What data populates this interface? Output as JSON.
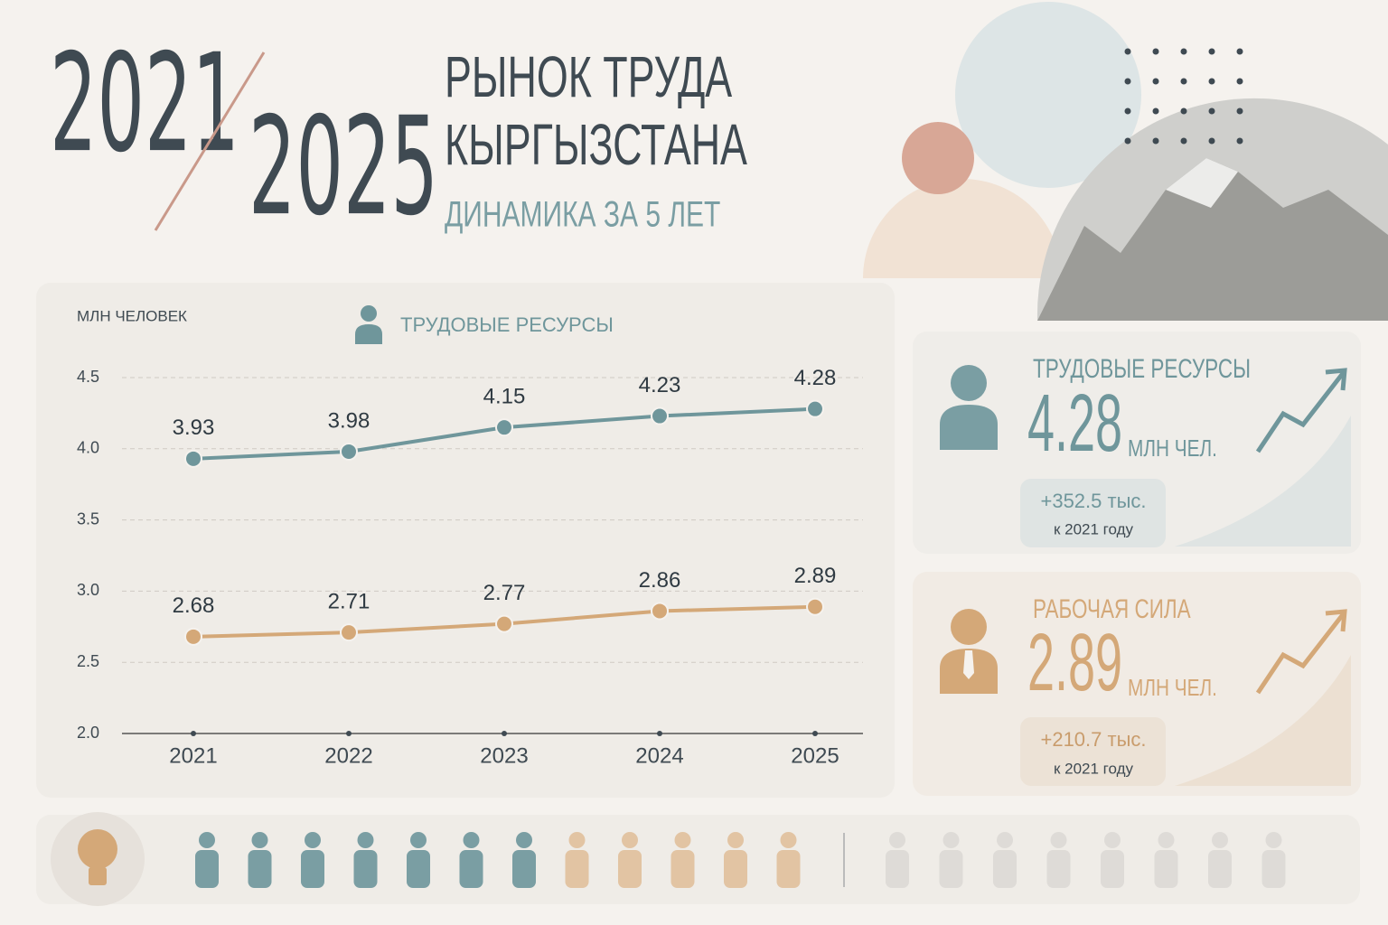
{
  "header": {
    "year_start": "2021",
    "year_end": "2025",
    "title_line1": "РЫНОК ТРУДА",
    "title_line2": "КЫРГЫЗСТАНА",
    "subtitle": "ДИНАМИКА ЗА 5 ЛЕТ"
  },
  "chart_data": {
    "type": "line",
    "y_label": "МЛН ЧЕЛОВЕК",
    "categories": [
      "2021",
      "2022",
      "2023",
      "2024",
      "2025"
    ],
    "series": [
      {
        "name": "ТРУДОВЫЕ РЕСУРСЫ",
        "color": "#6f969b",
        "values": [
          3.93,
          3.98,
          4.15,
          4.23,
          4.28
        ]
      },
      {
        "color": "#d4a878",
        "values": [
          2.68,
          2.71,
          2.77,
          2.86,
          2.89
        ]
      }
    ],
    "ylim": [
      2.0,
      4.5
    ],
    "yticks": [
      {
        "value": 2,
        "label": "2.0"
      },
      2.5,
      {
        "value": 3,
        "label": "3.0"
      },
      3.5,
      {
        "value": 4,
        "label": "4.0"
      },
      4.5
    ],
    "grid": true
  },
  "cards": [
    {
      "title": "ТРУДОВЫЕ РЕСУРСЫ",
      "value": "4.28",
      "unit": "МЛН ЧЕЛ.",
      "change": "+352.5 тыс.",
      "note": "к 2021 году"
    },
    {
      "title": "РАБОЧАЯ СИЛА",
      "value": "2.89",
      "unit": "МЛН ЧЕЛ.",
      "change": "+210.7 тыс.",
      "note": "к 2021 году"
    }
  ]
}
